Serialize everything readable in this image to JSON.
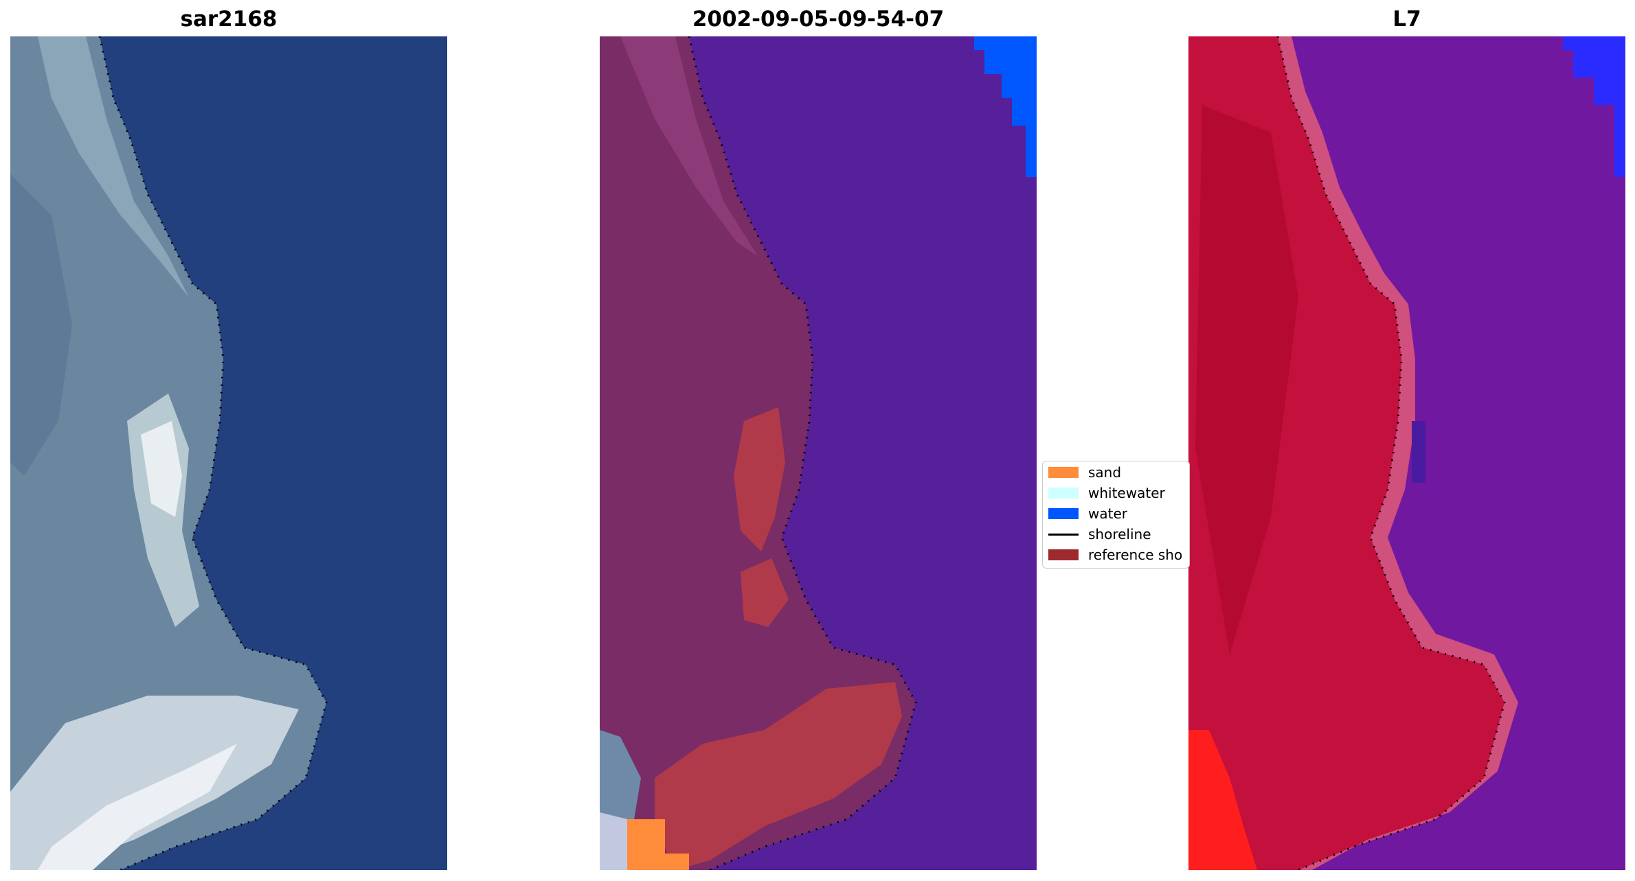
{
  "panels": [
    {
      "title": "sar2168",
      "view": "rgb"
    },
    {
      "title": "2002-09-05-09-54-07",
      "view": "classified"
    },
    {
      "title": "L7",
      "view": "index"
    }
  ],
  "legend": [
    {
      "label": "sand",
      "color": "#ff8c3a",
      "kind": "patch"
    },
    {
      "label": "whitewater",
      "color": "#ccffff",
      "kind": "patch"
    },
    {
      "label": "water",
      "color": "#0057ff",
      "kind": "patch"
    },
    {
      "label": "shoreline",
      "color": "#000000",
      "kind": "line"
    },
    {
      "label": "reference sho",
      "color": "#9e2a2f",
      "kind": "patch"
    }
  ],
  "colors": {
    "rgb_water": "#22407e",
    "rgb_land": "#6b87a0",
    "rgb_bright": "#e9eef0",
    "class_water": "#55209a",
    "class_land": "#7a2c66",
    "class_reference": "#b13a4a",
    "index_land": "#c4103c",
    "index_water": "#7019a0",
    "index_red": "#ff1e1e",
    "index_blue": "#2a2cff"
  }
}
